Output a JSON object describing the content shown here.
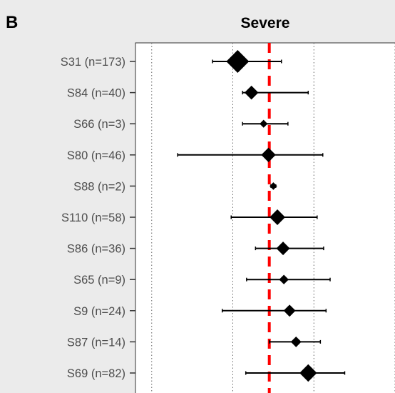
{
  "panel_label": "B",
  "chart_data": {
    "type": "forest",
    "title": "Severe",
    "xlabel": "",
    "ylabel": "",
    "xlim": [
      -1.2,
      2.0
    ],
    "vertical_gridlines_x": [
      -1,
      0,
      1,
      2
    ],
    "reference_line": {
      "x": 0.45,
      "style": "dashed",
      "color": "#ff0000"
    },
    "marker_color": "#000000",
    "studies": [
      {
        "label": "S31 (n=173)",
        "estimate": 0.06,
        "ci": [
          -0.25,
          0.6
        ],
        "n": 173
      },
      {
        "label": "S84 (n=40)",
        "estimate": 0.23,
        "ci": [
          0.12,
          0.93
        ],
        "n": 40
      },
      {
        "label": "S66 (n=3)",
        "estimate": 0.38,
        "ci": [
          0.12,
          0.68
        ],
        "n": 3
      },
      {
        "label": "S80 (n=46)",
        "estimate": 0.44,
        "ci": [
          -0.68,
          1.11
        ],
        "n": 46
      },
      {
        "label": "S88 (n=2)",
        "estimate": 0.5,
        "ci": [
          0.47,
          0.53
        ],
        "n": 2
      },
      {
        "label": "S110 (n=58)",
        "estimate": 0.55,
        "ci": [
          -0.02,
          1.04
        ],
        "n": 58
      },
      {
        "label": "S86 (n=36)",
        "estimate": 0.62,
        "ci": [
          0.28,
          1.12
        ],
        "n": 36
      },
      {
        "label": "S65 (n=9)",
        "estimate": 0.63,
        "ci": [
          0.17,
          1.2
        ],
        "n": 9
      },
      {
        "label": "S9 (n=24)",
        "estimate": 0.7,
        "ci": [
          -0.13,
          1.15
        ],
        "n": 24
      },
      {
        "label": "S87 (n=14)",
        "estimate": 0.78,
        "ci": [
          0.45,
          1.08
        ],
        "n": 14
      },
      {
        "label": "S69 (n=82)",
        "estimate": 0.93,
        "ci": [
          0.16,
          1.38
        ],
        "n": 82
      }
    ]
  }
}
